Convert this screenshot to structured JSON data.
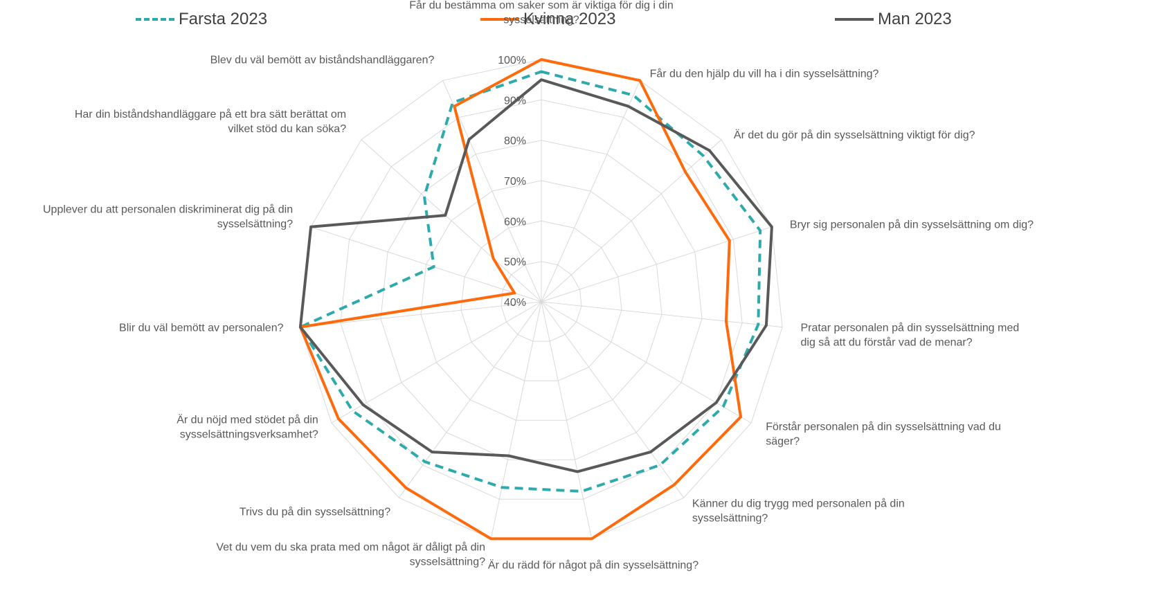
{
  "chart_data": {
    "type": "radar",
    "title": "",
    "radial_range": [
      0.4,
      1.0
    ],
    "radial_ticks": [
      "40%",
      "50%",
      "60%",
      "70%",
      "80%",
      "90%",
      "100%"
    ],
    "grid": true,
    "legend_position": "top",
    "categories": [
      "Får du bestämma om saker som är viktiga för dig i din sysselsättning?",
      "Får du den hjälp du vill ha i din sysselsättning?",
      "Är det du gör på din sysselsättning viktigt för dig?",
      "Bryr sig personalen på din sysselsättning om dig?",
      "Pratar personalen på din sysselsättning med dig så att du förstår vad de menar?",
      "Förstår personalen på din sysselsättning vad du säger?",
      "Känner du dig trygg med personalen på din sysselsättning?",
      "Är du rädd för något på din sysselsättning?",
      "Vet du vem du ska prata med om något är dåligt på din sysselsättning?",
      "Trivs du på din sysselsättning?",
      "Är du nöjd med stödet på din sysselsättningsverksamhet?",
      "Blir du väl bemött av personalen?",
      "Upplever du att personalen diskriminerat dig på din sysselsättning?",
      "Har din biståndshandläggare på ett bra sätt berättat om vilket stöd du kan söka?",
      "Blev du väl bemött av biståndshandläggaren?"
    ],
    "series": [
      {
        "name": "Farsta 2023",
        "color": "#2EAAAD",
        "style": "dashed",
        "values": [
          0.97,
          0.96,
          0.94,
          0.97,
          0.94,
          0.92,
          0.9,
          0.88,
          0.87,
          0.89,
          0.94,
          1.0,
          0.68,
          0.79,
          0.94
        ]
      },
      {
        "name": "Kvinna 2023",
        "color": "#FF6A0D",
        "style": "solid",
        "values": [
          1.0,
          1.0,
          0.88,
          0.89,
          0.86,
          0.97,
          0.96,
          1.0,
          1.0,
          0.97,
          0.98,
          1.0,
          0.47,
          0.56,
          0.93
        ]
      },
      {
        "name": "Man 2023",
        "color": "#595959",
        "style": "solid",
        "values": [
          0.95,
          0.93,
          0.96,
          1.0,
          0.96,
          0.9,
          0.86,
          0.83,
          0.79,
          0.86,
          0.91,
          1.0,
          1.0,
          0.72,
          0.84
        ]
      }
    ]
  }
}
